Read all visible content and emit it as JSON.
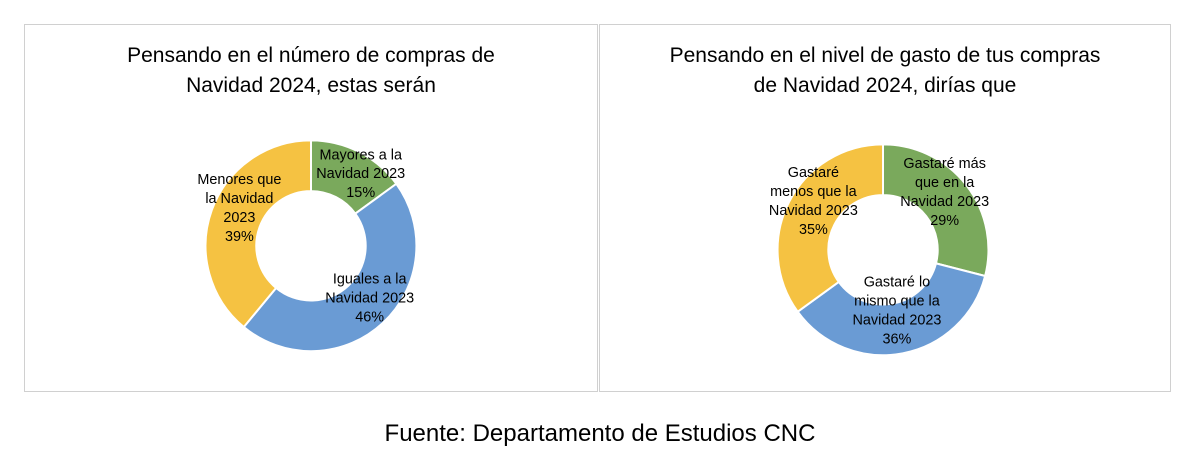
{
  "chart_data": [
    {
      "type": "pie",
      "variant": "donut",
      "title": "Pensando en el número de compras de\nNavidad 2024, estas serán",
      "slices": [
        {
          "label": [
            "Mayores a la",
            "Navidad 2023",
            "15%"
          ],
          "value": 15,
          "color": "#7aa95c"
        },
        {
          "label": [
            "Iguales a la",
            "Navidad 2023",
            "46%"
          ],
          "value": 46,
          "color": "#6a9bd4"
        },
        {
          "label": [
            "Menores que",
            "la Navidad",
            "2023",
            "39%"
          ],
          "value": 39,
          "color": "#f5c242"
        }
      ]
    },
    {
      "type": "pie",
      "variant": "donut",
      "title": "Pensando en el nivel de gasto de tus compras\nde Navidad 2024, dirías que",
      "slices": [
        {
          "label": [
            "Gastaré más",
            "que en la",
            "Navidad 2023",
            "29%"
          ],
          "value": 29,
          "color": "#7aa95c"
        },
        {
          "label": [
            "Gastaré lo",
            "mismo que la",
            "Navidad 2023",
            "36%"
          ],
          "value": 36,
          "color": "#6a9bd4"
        },
        {
          "label": [
            "Gastaré",
            "menos que la",
            "Navidad 2023",
            "35%"
          ],
          "value": 35,
          "color": "#f5c242"
        }
      ]
    }
  ],
  "footer": {
    "source": "Fuente: Departamento de Estudios CNC"
  }
}
